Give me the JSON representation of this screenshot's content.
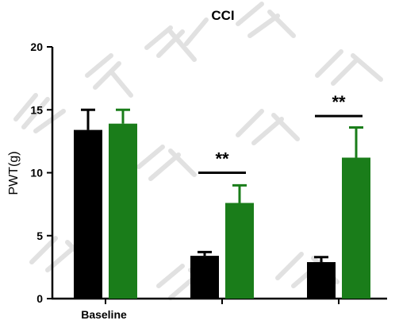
{
  "chart_data": {
    "type": "bar",
    "title": "CCI",
    "xlabel": "",
    "ylabel": "PWT(g)",
    "ylim": [
      0,
      20
    ],
    "yticks": [
      0,
      5,
      10,
      15,
      20
    ],
    "categories": [
      "Baseline",
      "",
      ""
    ],
    "series": [
      {
        "color": "#000000",
        "values": [
          13.4,
          3.4,
          2.9
        ],
        "errors": [
          1.6,
          0.3,
          0.4
        ]
      },
      {
        "color": "#1a7d1a",
        "values": [
          13.9,
          7.6,
          11.2
        ],
        "errors": [
          1.1,
          1.4,
          2.4
        ]
      }
    ],
    "annotations": [
      {
        "category": 1,
        "label": "**",
        "y": 10.0
      },
      {
        "category": 2,
        "label": "**",
        "y": 14.5
      }
    ],
    "grid": false,
    "legend": "none",
    "watermark": "KYLIN LAB"
  }
}
